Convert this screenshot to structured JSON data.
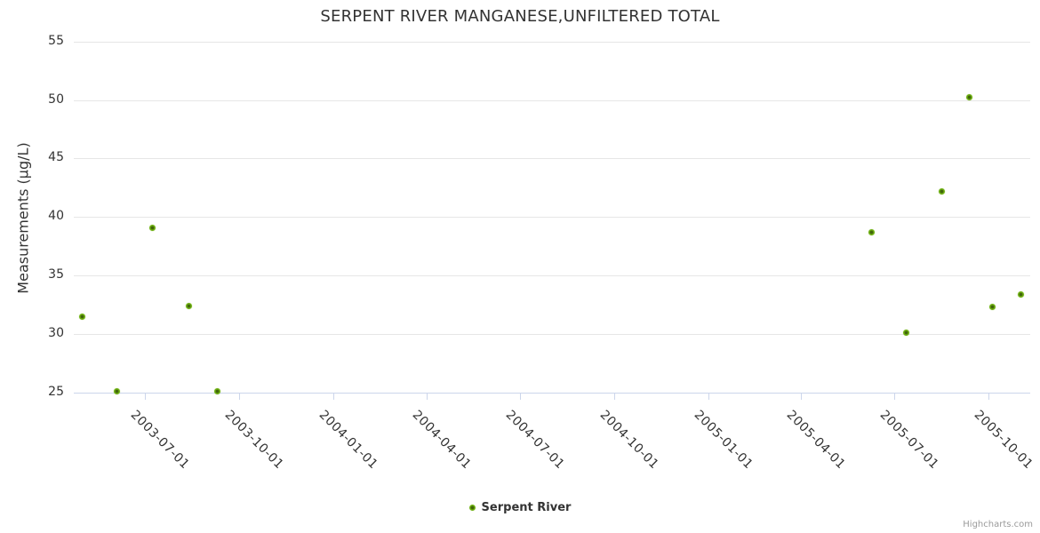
{
  "title": "SERPENT RIVER MANGANESE,UNFILTERED TOTAL",
  "legend": {
    "series_label": "Serpent River"
  },
  "credits": {
    "label": "Highcharts.com"
  },
  "colors": {
    "marker_outer": "#6fb112",
    "marker_inner": "#41650b",
    "grid": "#e6e6e6",
    "axis": "#ccd6eb",
    "text": "#333333",
    "credits_text": "#9a9a9a"
  },
  "chart_data": {
    "type": "scatter",
    "title": "SERPENT RIVER MANGANESE,UNFILTERED TOTAL",
    "xlabel": "",
    "ylabel": "Measurements (µg/L)",
    "ylim": [
      25,
      55
    ],
    "xlim": [
      "2003-04-23",
      "2005-11-11"
    ],
    "yticks": [
      25,
      30,
      35,
      40,
      45,
      50,
      55
    ],
    "xticks": [
      "2003-07-01",
      "2003-10-01",
      "2004-01-01",
      "2004-04-01",
      "2004-07-01",
      "2004-10-01",
      "2005-01-01",
      "2005-04-01",
      "2005-07-01",
      "2005-10-01"
    ],
    "grid": "horizontal-only",
    "legend_position": "bottom-center",
    "series": [
      {
        "name": "Serpent River",
        "points": [
          {
            "date": "2003-05-01",
            "value": 31.5
          },
          {
            "date": "2003-06-04",
            "value": 25.1
          },
          {
            "date": "2003-07-09",
            "value": 39.1
          },
          {
            "date": "2003-08-13",
            "value": 32.4
          },
          {
            "date": "2003-09-10",
            "value": 25.1
          },
          {
            "date": "2005-06-09",
            "value": 38.7
          },
          {
            "date": "2005-07-13",
            "value": 30.1
          },
          {
            "date": "2005-08-17",
            "value": 42.2
          },
          {
            "date": "2005-09-13",
            "value": 50.2
          },
          {
            "date": "2005-10-05",
            "value": 32.3
          },
          {
            "date": "2005-11-02",
            "value": 33.4
          }
        ]
      }
    ]
  }
}
